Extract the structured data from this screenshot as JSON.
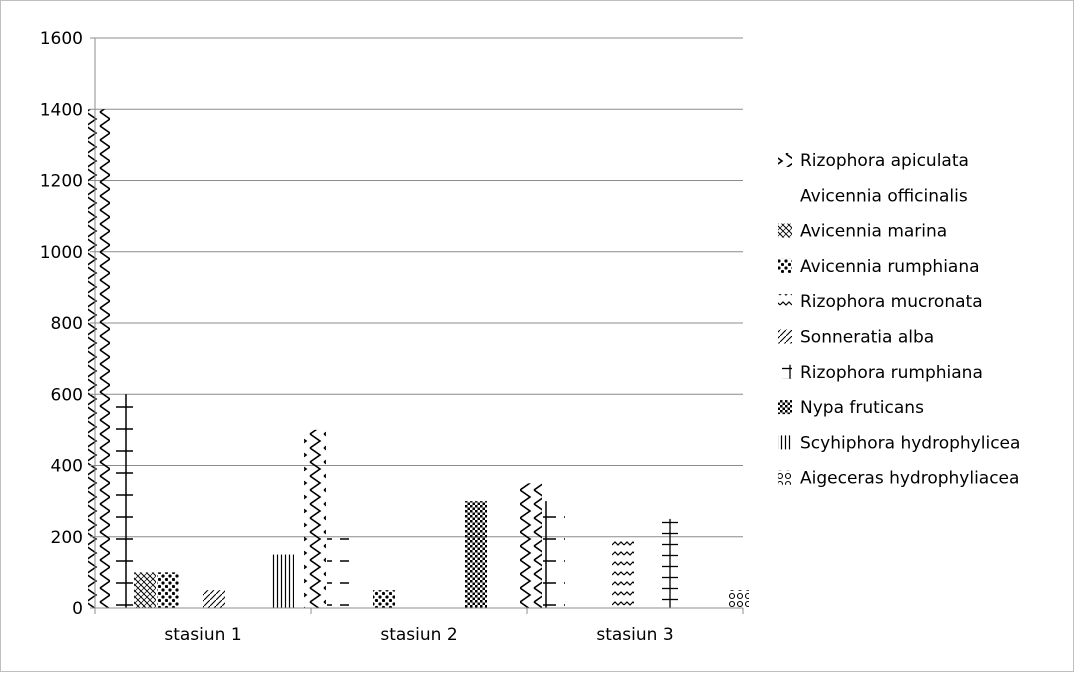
{
  "chart_data": {
    "type": "bar",
    "title": "",
    "xlabel": "",
    "ylabel": "",
    "ylim": [
      0,
      1600
    ],
    "yticks": [
      0,
      200,
      400,
      600,
      800,
      1000,
      1200,
      1400,
      1600
    ],
    "grid": true,
    "legend_position": "right",
    "categories": [
      "stasiun 1",
      "stasiun 2",
      "stasiun 3"
    ],
    "series": [
      {
        "name": "Rizophora apiculata",
        "pattern": "zigzag",
        "values": [
          1400,
          500,
          350
        ]
      },
      {
        "name": "Avicennia officinalis",
        "pattern": "ladder",
        "values": [
          600,
          200,
          300
        ]
      },
      {
        "name": "Avicennia marina",
        "pattern": "crosshatch",
        "values": [
          100,
          0,
          0
        ]
      },
      {
        "name": "Avicennia rumphiana",
        "pattern": "dots",
        "values": [
          100,
          50,
          0
        ]
      },
      {
        "name": "Rizophora mucronata",
        "pattern": "waves",
        "values": [
          0,
          0,
          200
        ]
      },
      {
        "name": "Sonneratia alba",
        "pattern": "diagonal",
        "values": [
          50,
          0,
          0
        ]
      },
      {
        "name": "Rizophora rumphiana",
        "pattern": "grid",
        "values": [
          0,
          0,
          250
        ]
      },
      {
        "name": "Nypa fruticans",
        "pattern": "checker",
        "values": [
          0,
          300,
          0
        ]
      },
      {
        "name": "Scyhiphora hydrophylicea",
        "pattern": "vlines",
        "values": [
          150,
          0,
          0
        ]
      },
      {
        "name": "Aigeceras hydrophyliacea",
        "pattern": "circles",
        "values": [
          0,
          0,
          50
        ]
      }
    ]
  }
}
